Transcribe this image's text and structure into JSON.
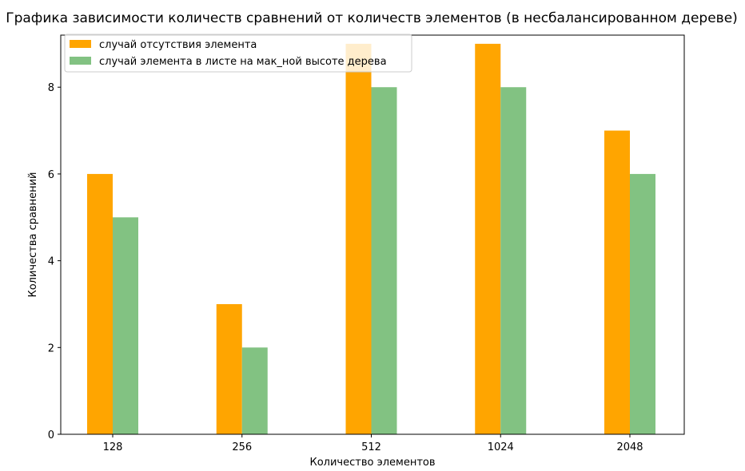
{
  "chart_data": {
    "type": "bar",
    "title": "Графика зависимости количеств сравнений от количеств элементов (в несбалансированном дереве)",
    "xlabel": "Количество элементов",
    "ylabel": "Количества сравнений",
    "categories": [
      "128",
      "256",
      "512",
      "1024",
      "2048"
    ],
    "series": [
      {
        "name": "случай отсутствия элемента",
        "values": [
          6,
          3,
          9,
          9,
          7
        ],
        "color": "#ffa500"
      },
      {
        "name": "случай элемента в листе на мак_ной высоте дерева",
        "values": [
          5,
          2,
          8,
          8,
          6
        ],
        "color": "#82c282"
      }
    ],
    "ylim": [
      0,
      9.2
    ],
    "yticks": [
      0,
      2,
      4,
      6,
      8
    ],
    "grid": false,
    "legend_position": "top-left"
  }
}
